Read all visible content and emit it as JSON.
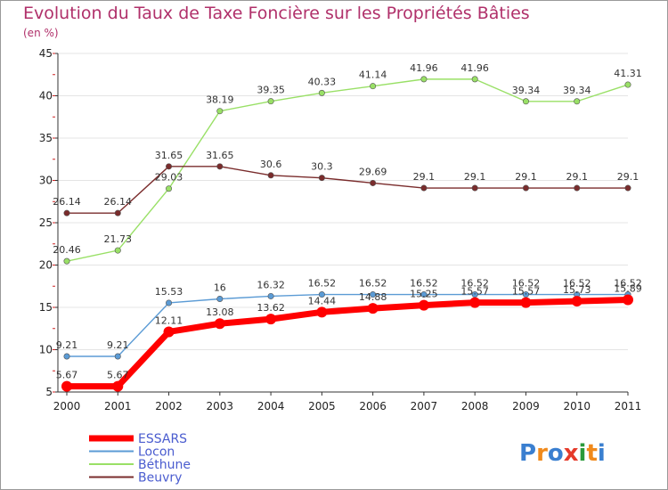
{
  "chart_data": {
    "type": "line",
    "title": "Evolution du Taux de Taxe Foncière sur les Propriétés Bâties",
    "subtitle": "(en %)",
    "x": [
      "2000",
      "2001",
      "2002",
      "2003",
      "2004",
      "2005",
      "2006",
      "2007",
      "2008",
      "2009",
      "2010",
      "2011"
    ],
    "ylim": [
      5,
      45
    ],
    "yticks": [
      "5",
      "10",
      "15",
      "20",
      "25",
      "30",
      "35",
      "40",
      "45"
    ],
    "series": [
      {
        "name": "ESSARS",
        "color": "#ff0000",
        "values": [
          5.67,
          5.67,
          12.11,
          13.08,
          13.62,
          14.44,
          14.88,
          15.25,
          15.57,
          15.57,
          15.73,
          15.89
        ],
        "labels": [
          "5.67",
          "5.67",
          "12.11",
          "13.08",
          "13.62",
          "14.44",
          "14.88",
          "15.25",
          "15.57",
          "15.57",
          "15.73",
          "15.89"
        ]
      },
      {
        "name": "Locon",
        "color": "#5b9bd5",
        "values": [
          9.21,
          9.21,
          15.53,
          16,
          16.32,
          16.52,
          16.52,
          16.52,
          16.52,
          16.52,
          16.52,
          16.52
        ],
        "labels": [
          "9.21",
          "9.21",
          "15.53",
          "16",
          "16.32",
          "16.52",
          "16.52",
          "16.52",
          "16.52",
          "16.52",
          "16.52",
          "16.52"
        ]
      },
      {
        "name": "Béthune",
        "color": "#99e066",
        "values": [
          20.46,
          21.73,
          29.03,
          38.19,
          39.35,
          40.33,
          41.14,
          41.96,
          41.96,
          39.34,
          39.34,
          41.31
        ],
        "labels": [
          "20.46",
          "21.73",
          "29.03",
          "38.19",
          "39.35",
          "40.33",
          "41.14",
          "41.96",
          "41.96",
          "39.34",
          "39.34",
          "41.31"
        ]
      },
      {
        "name": "Beuvry",
        "color": "#7a2c2c",
        "values": [
          26.14,
          26.14,
          31.65,
          31.65,
          30.6,
          30.3,
          29.69,
          29.1,
          29.1,
          29.1,
          29.1,
          29.1
        ],
        "labels": [
          "26.14",
          "26.14",
          "31.65",
          "31.65",
          "30.6",
          "30.3",
          "29.69",
          "29.1",
          "29.1",
          "29.1",
          "29.1",
          "29.1"
        ]
      }
    ]
  },
  "logo": {
    "text": "Proxiti"
  }
}
